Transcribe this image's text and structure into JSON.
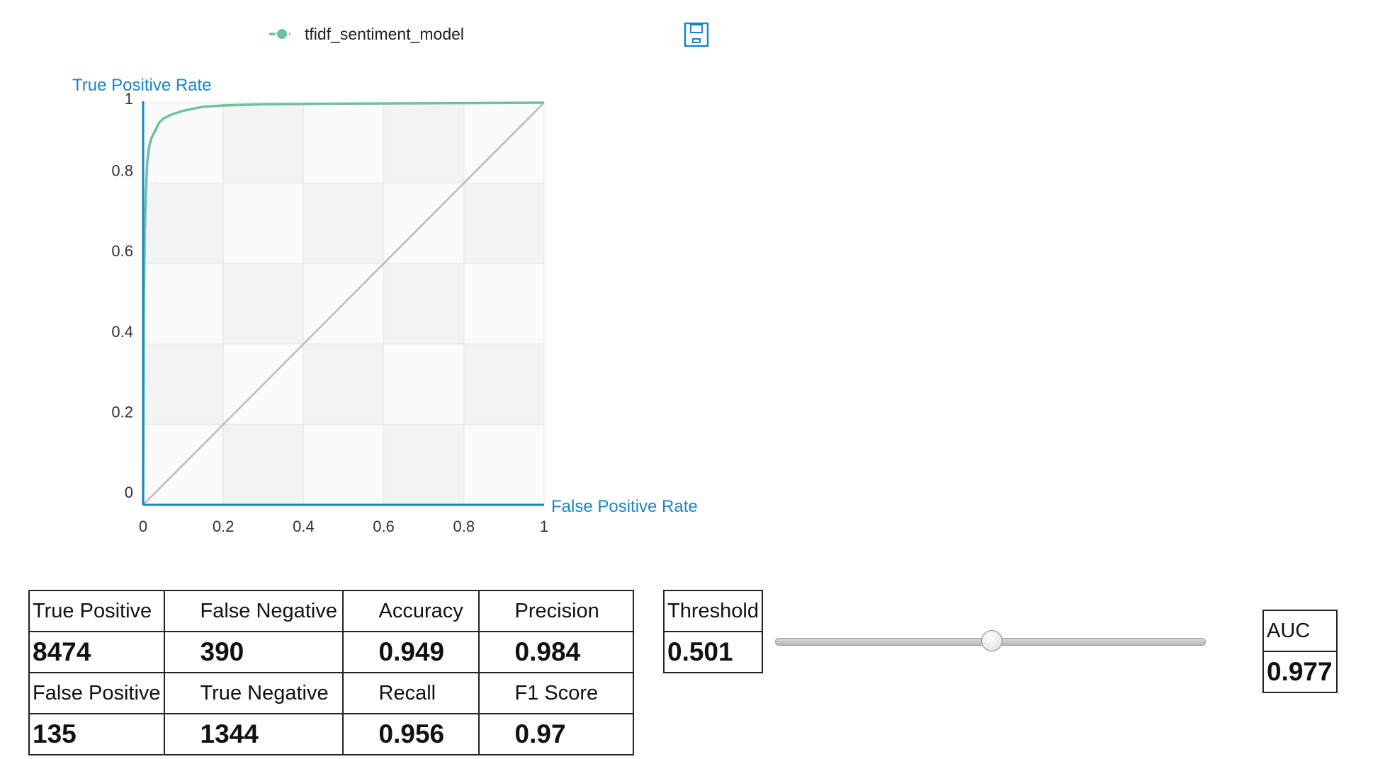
{
  "chart_data": {
    "type": "line",
    "xlabel": "False Positive Rate",
    "ylabel": "True Positive Rate",
    "xlim": [
      0,
      1
    ],
    "ylim": [
      0,
      1
    ],
    "x_ticks": [
      "0",
      "0.2",
      "0.4",
      "0.6",
      "0.8",
      "1"
    ],
    "y_ticks": [
      "0",
      "0.2",
      "0.4",
      "0.6",
      "0.8",
      "1"
    ],
    "grid": true,
    "legend_position": "top",
    "series": [
      {
        "name": "tfidf_sentiment_model",
        "color": "#6cc3a0",
        "x": [
          0,
          0.002,
          0.004,
          0.007,
          0.01,
          0.015,
          0.02,
          0.03,
          0.04,
          0.05,
          0.07,
          0.1,
          0.15,
          0.2,
          0.3,
          0.4,
          0.6,
          0.8,
          1
        ],
        "y": [
          0,
          0.5,
          0.68,
          0.78,
          0.85,
          0.89,
          0.91,
          0.93,
          0.95,
          0.96,
          0.97,
          0.98,
          0.99,
          0.993,
          0.996,
          0.997,
          0.998,
          0.999,
          1
        ]
      },
      {
        "name": "",
        "color": "#bbbbbb",
        "x": [
          0,
          1
        ],
        "y": [
          0,
          1
        ]
      }
    ]
  },
  "toolbar": {
    "save_icon": "save-icon"
  },
  "metrics": {
    "true_positive": {
      "label": "True Positive",
      "value": "8474"
    },
    "false_negative": {
      "label": "False Negative",
      "value": "390"
    },
    "accuracy": {
      "label": "Accuracy",
      "value": "0.949"
    },
    "precision": {
      "label": "Precision",
      "value": "0.984"
    },
    "false_positive": {
      "label": "False Positive",
      "value": "135"
    },
    "true_negative": {
      "label": "True Negative",
      "value": "1344"
    },
    "recall": {
      "label": "Recall",
      "value": "0.956"
    },
    "f1_score": {
      "label": "F1 Score",
      "value": "0.97"
    }
  },
  "threshold": {
    "label": "Threshold",
    "value": "0.501",
    "slider_fraction": 0.501
  },
  "auc": {
    "label": "AUC",
    "value": "0.977"
  }
}
